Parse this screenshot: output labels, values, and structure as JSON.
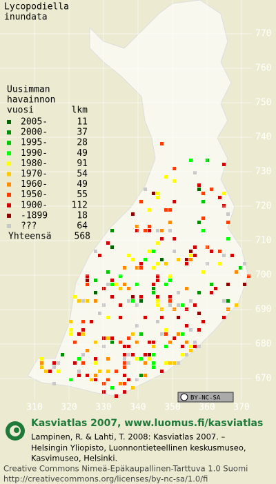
{
  "title": [
    "Lycopodiella",
    "inundata"
  ],
  "legend": {
    "header": [
      "Uusimman",
      "havainnon"
    ],
    "col_year": "vuosi",
    "col_count": "lkm",
    "rows": [
      {
        "label": "2005-",
        "count": "11",
        "color": "#006400"
      },
      {
        "label": "2000-",
        "count": "37",
        "color": "#008c00"
      },
      {
        "label": "1995-",
        "count": "28",
        "color": "#00c800"
      },
      {
        "label": "1990-",
        "count": "49",
        "color": "#00ff00"
      },
      {
        "label": "1980-",
        "count": "91",
        "color": "#ffff00"
      },
      {
        "label": "1970-",
        "count": "54",
        "color": "#ffc800"
      },
      {
        "label": "1960-",
        "count": "49",
        "color": "#ff8c00"
      },
      {
        "label": "1950-",
        "count": "55",
        "color": "#ff3c00"
      },
      {
        "label": "1900-",
        "count": "112",
        "color": "#d20000"
      },
      {
        "label": "-1899",
        "count": "18",
        "color": "#8c0000"
      },
      {
        "label": "???",
        "count": "64",
        "color": "#c8c8c8"
      }
    ],
    "total_label": "Yhteensä",
    "total": "568"
  },
  "grid": {
    "y_labels": [
      770,
      760,
      750,
      740,
      730,
      720,
      710,
      700,
      690,
      680,
      670
    ],
    "x_labels": [
      310,
      320,
      330,
      340,
      350,
      360,
      370
    ]
  },
  "badge": "BY-NC-SA",
  "footer": {
    "site": "Kasviatlas 2007, www.luomus.fi/kasviatlas",
    "citation": [
      "Lampinen, R. & Lahti, T. 2008: Kasviatlas 2007. –",
      "Helsingin Yliopisto, Luonnontieteellinen keskusmuseo,",
      "Kasvimuseo, Helsinki."
    ],
    "license": "Creative Commons Nimeä-Epäkaupallinen-Tarttuva 1.0 Suomi",
    "url": "http://creativecommons.org/licenses/by-nc-sa/1.0/fi"
  }
}
